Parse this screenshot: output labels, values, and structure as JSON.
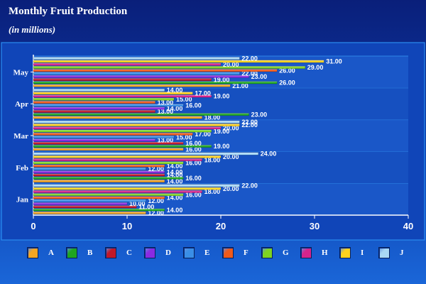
{
  "header": {
    "title": "Monthly Fruit Production",
    "subtitle": "(in millions)"
  },
  "chart_data": {
    "type": "bar",
    "orientation": "horizontal",
    "categories": [
      "Jan",
      "Feb",
      "Mar",
      "Apr",
      "May"
    ],
    "series": [
      {
        "name": "A",
        "color": "#f5a623",
        "values": [
          12,
          14,
          16,
          18,
          21
        ]
      },
      {
        "name": "B",
        "color": "#1fa51f",
        "values": [
          14,
          16,
          19,
          23,
          26
        ]
      },
      {
        "name": "C",
        "color": "#c0182a",
        "values": [
          11,
          14,
          16,
          13,
          19
        ]
      },
      {
        "name": "D",
        "color": "#8a2be2",
        "values": [
          10,
          14,
          13,
          14,
          23
        ]
      },
      {
        "name": "E",
        "color": "#3a8ee6",
        "values": [
          12,
          12,
          15,
          16,
          22
        ]
      },
      {
        "name": "F",
        "color": "#f05a1a",
        "values": [
          14,
          14,
          17,
          13,
          26
        ]
      },
      {
        "name": "G",
        "color": "#7ed321",
        "values": [
          16,
          16,
          19,
          15,
          29
        ]
      },
      {
        "name": "H",
        "color": "#d6248c",
        "values": [
          18,
          18,
          20,
          19,
          20
        ]
      },
      {
        "name": "I",
        "color": "#ffd21f",
        "values": [
          20,
          20,
          22,
          17,
          31
        ]
      },
      {
        "name": "J",
        "color": "#a8d8f5",
        "values": [
          22,
          24,
          22,
          14,
          22
        ]
      }
    ],
    "xlim": [
      0,
      40
    ],
    "xticks": [
      0,
      10,
      20,
      30,
      40
    ],
    "value_format": "0.00",
    "legend_position": "bottom",
    "grid": false
  }
}
